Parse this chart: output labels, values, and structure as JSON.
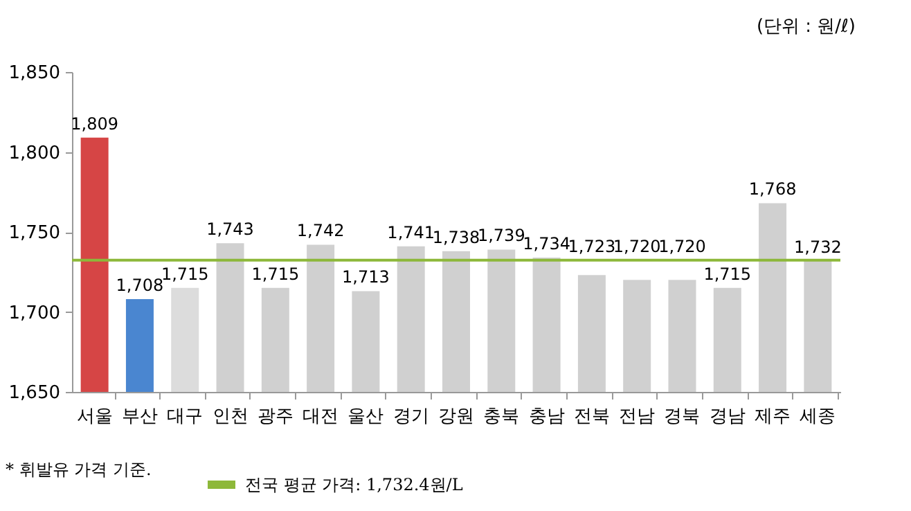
{
  "chart_data": {
    "type": "bar",
    "categories": [
      "서울",
      "부산",
      "대구",
      "인천",
      "광주",
      "대전",
      "울산",
      "경기",
      "강원",
      "충북",
      "충남",
      "전북",
      "전남",
      "경북",
      "경남",
      "제주",
      "세종"
    ],
    "values": [
      1809,
      1708,
      1715,
      1743,
      1715,
      1742,
      1713,
      1741,
      1738,
      1739,
      1734,
      1723,
      1720,
      1720,
      1715,
      1768,
      1732
    ],
    "colors": [
      "#d64545",
      "#4a86d0",
      "#dcdcdc",
      "#d0d0d0",
      "#d0d0d0",
      "#d0d0d0",
      "#d0d0d0",
      "#d0d0d0",
      "#d0d0d0",
      "#d0d0d0",
      "#d0d0d0",
      "#d0d0d0",
      "#d0d0d0",
      "#d0d0d0",
      "#d0d0d0",
      "#d0d0d0",
      "#d0d0d0"
    ],
    "ylim": [
      1650,
      1850
    ],
    "yticks": [
      {
        "value": 1650,
        "label": "1,650"
      },
      {
        "value": 1700,
        "label": "1,700"
      },
      {
        "value": 1750,
        "label": "1,750"
      },
      {
        "value": 1800,
        "label": "1,800"
      },
      {
        "value": 1850,
        "label": "1,850"
      }
    ],
    "data_labels": true,
    "value_labels": [
      "1,809",
      "1,708",
      "1,715",
      "1,743",
      "1,715",
      "1,742",
      "1,713",
      "1,741",
      "1,738",
      "1,739",
      "1,734",
      "1,723",
      "1,720",
      "1,720",
      "1,715",
      "1,768",
      "1,732"
    ],
    "ref_lines": [
      {
        "axis": "y",
        "value": 1732.4,
        "label": "전국 평균 가격: 1,732.4원/L",
        "color": "#8db83a"
      }
    ],
    "legend": "bottom",
    "annotations": [
      "(단위 : 원/ℓ)",
      "* 휘발유 가격 기준."
    ]
  }
}
